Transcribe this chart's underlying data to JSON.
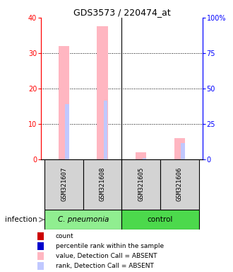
{
  "title": "GDS3573 / 220474_at",
  "samples": [
    "GSM321607",
    "GSM321608",
    "GSM321605",
    "GSM321606"
  ],
  "x_positions": [
    1,
    2,
    3,
    4
  ],
  "value_absent": [
    32.0,
    37.5,
    2.0,
    6.0
  ],
  "rank_absent": [
    15.5,
    16.5,
    0.4,
    4.5
  ],
  "ylim_left": [
    0,
    40
  ],
  "ylim_right": [
    0,
    100
  ],
  "yticks_left": [
    0,
    10,
    20,
    30,
    40
  ],
  "yticks_right": [
    0,
    25,
    50,
    75,
    100
  ],
  "ytick_labels_right": [
    "0",
    "25",
    "50",
    "75",
    "100%"
  ],
  "color_value_absent": "#FFB6C1",
  "color_rank_absent": "#C0C8FF",
  "color_count": "#CC0000",
  "color_pct": "#0000CC",
  "pink_bar_width": 0.28,
  "rank_bar_width": 0.1,
  "legend_items": [
    {
      "label": "count",
      "color": "#CC0000",
      "marker": "s"
    },
    {
      "label": "percentile rank within the sample",
      "color": "#0000CC",
      "marker": "s"
    },
    {
      "label": "value, Detection Call = ABSENT",
      "color": "#FFB6C1",
      "marker": "s"
    },
    {
      "label": "rank, Detection Call = ABSENT",
      "color": "#C0C8FF",
      "marker": "s"
    }
  ],
  "group1_label": "C. pneumonia",
  "group2_label": "control",
  "group1_color": "#90EE90",
  "group2_color": "#4CD94C",
  "label_gray": "#D3D3D3",
  "infection_label": "infection"
}
